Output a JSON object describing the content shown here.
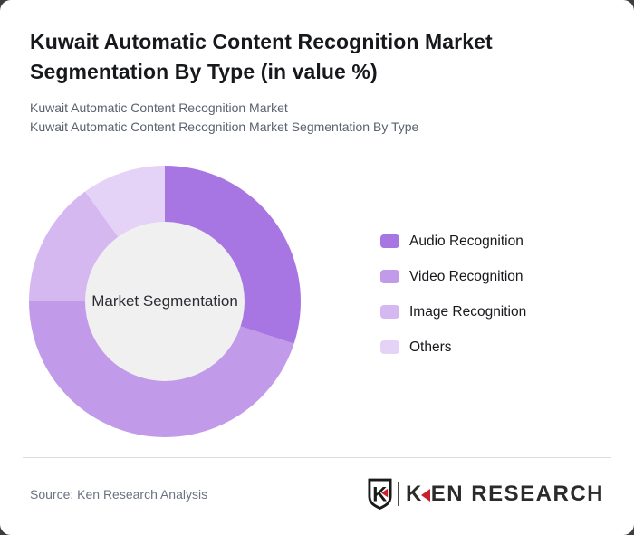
{
  "page": {
    "background_color": "#3d3d3d",
    "card_color": "#ffffff"
  },
  "header": {
    "title": "Kuwait Automatic Content Recognition Market Segmentation By Type (in value %)",
    "subtitle_line1": "Kuwait Automatic Content Recognition Market",
    "subtitle_line2": "Kuwait Automatic Content Recognition Market Segmentation By Type"
  },
  "chart_data": {
    "type": "pie",
    "variant": "donut",
    "title": "Kuwait Automatic Content Recognition Market Segmentation By Type (in value %)",
    "unit": "value %",
    "labels": [
      "Audio Recognition",
      "Video Recognition",
      "Image Recognition",
      "Others"
    ],
    "values": [
      30,
      45,
      15,
      10
    ],
    "colors": [
      "#a876e2",
      "#c19aea",
      "#d6b8f1",
      "#e4d2f7"
    ],
    "start_angle_deg": 0,
    "direction": "clockwise",
    "legend_position": "right",
    "center_label": "Market Segmentation",
    "center_color": "#f0f0f0"
  },
  "footer": {
    "source": "Source: Ken Research Analysis",
    "logo": {
      "shield_letter": "K",
      "brand_first_letter": "K",
      "brand_rest": "EN RESEARCH",
      "accent_color": "#c8202f"
    }
  }
}
